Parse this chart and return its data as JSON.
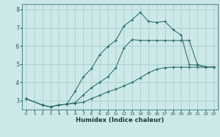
{
  "xlabel": "Humidex (Indice chaleur)",
  "background_color": "#cce8e8",
  "grid_color": "#aacccc",
  "line_color": "#2a6e6a",
  "xlim": [
    -0.5,
    23.5
  ],
  "ylim": [
    2.5,
    8.3
  ],
  "xticks": [
    0,
    1,
    2,
    3,
    4,
    5,
    6,
    7,
    8,
    9,
    10,
    11,
    12,
    13,
    14,
    15,
    16,
    17,
    18,
    19,
    20,
    21,
    22,
    23
  ],
  "yticks": [
    3,
    4,
    5,
    6,
    7,
    8
  ],
  "line1_x": [
    0,
    2,
    3,
    4,
    5,
    6,
    7,
    8,
    9,
    10,
    11,
    12,
    13,
    14,
    15,
    16,
    17,
    18,
    19,
    20,
    21,
    22,
    23
  ],
  "line1_y": [
    3.1,
    2.75,
    2.65,
    2.75,
    2.8,
    3.5,
    4.3,
    4.75,
    5.5,
    5.97,
    6.3,
    7.1,
    7.45,
    7.85,
    7.35,
    7.3,
    7.35,
    6.9,
    6.6,
    4.97,
    4.95,
    4.85,
    4.85
  ],
  "line2_x": [
    0,
    2,
    3,
    4,
    5,
    6,
    7,
    8,
    9,
    10,
    11,
    12,
    13,
    14,
    15,
    16,
    17,
    18,
    19,
    20,
    21,
    22,
    23
  ],
  "line2_y": [
    3.1,
    2.75,
    2.65,
    2.75,
    2.8,
    2.88,
    3.3,
    3.7,
    4.0,
    4.3,
    4.8,
    5.9,
    6.35,
    6.3,
    6.3,
    6.3,
    6.3,
    6.3,
    6.3,
    6.3,
    4.97,
    4.85,
    4.85
  ],
  "line3_x": [
    0,
    2,
    3,
    4,
    5,
    6,
    7,
    8,
    9,
    10,
    11,
    12,
    13,
    14,
    15,
    16,
    17,
    18,
    19,
    20,
    21,
    22,
    23
  ],
  "line3_y": [
    3.1,
    2.75,
    2.65,
    2.75,
    2.8,
    2.85,
    2.9,
    3.1,
    3.28,
    3.48,
    3.62,
    3.8,
    4.0,
    4.25,
    4.52,
    4.72,
    4.8,
    4.83,
    4.83,
    4.83,
    4.83,
    4.83,
    4.83
  ]
}
